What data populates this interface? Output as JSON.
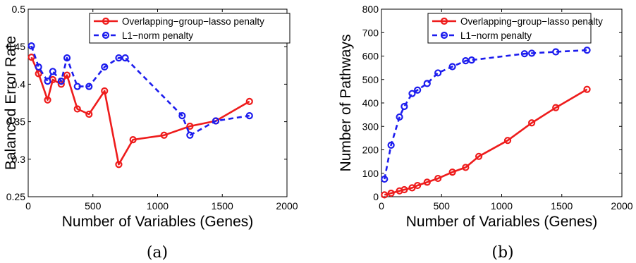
{
  "chart_data": [
    {
      "type": "line",
      "caption": "(a)",
      "xlabel": "Number of Variables (Genes)",
      "ylabel": "Balanced Error Rate",
      "xlim": [
        0,
        2000
      ],
      "ylim": [
        0.25,
        0.5
      ],
      "xticks": [
        0,
        500,
        1000,
        1500,
        2000
      ],
      "yticks": [
        0.25,
        0.3,
        0.35,
        0.4,
        0.45,
        0.5
      ],
      "xtick_labels": [
        "0",
        "500",
        "1000",
        "1500",
        "2000"
      ],
      "ytick_labels": [
        "0.25",
        "0.3",
        "0.35",
        "0.4",
        "0.45",
        "0.5"
      ],
      "grid": false,
      "legend": "top-right",
      "series": [
        {
          "name": "Overlapping−group−lasso penalty",
          "color": "#ee1c1c",
          "style": "solid",
          "x": [
            25,
            80,
            150,
            190,
            255,
            300,
            380,
            470,
            590,
            700,
            810,
            1050,
            1250,
            1450,
            1710
          ],
          "y": [
            0.436,
            0.414,
            0.379,
            0.406,
            0.4,
            0.412,
            0.367,
            0.36,
            0.391,
            0.293,
            0.326,
            0.332,
            0.344,
            0.351,
            0.377
          ]
        },
        {
          "name": "L1−norm penalty",
          "color": "#1c1cee",
          "style": "dashed",
          "x": [
            25,
            80,
            150,
            190,
            255,
            300,
            380,
            470,
            590,
            700,
            750,
            1190,
            1250,
            1450,
            1710
          ],
          "y": [
            0.451,
            0.423,
            0.404,
            0.417,
            0.404,
            0.435,
            0.397,
            0.397,
            0.423,
            0.435,
            0.435,
            0.358,
            0.332,
            0.351,
            0.358
          ]
        }
      ]
    },
    {
      "type": "line",
      "caption": "(b)",
      "xlabel": "Number of Variables (Genes)",
      "ylabel": "Number of Pathways",
      "xlim": [
        0,
        2000
      ],
      "ylim": [
        0,
        800
      ],
      "xticks": [
        0,
        500,
        1000,
        1500,
        2000
      ],
      "yticks": [
        0,
        100,
        200,
        300,
        400,
        500,
        600,
        700,
        800
      ],
      "xtick_labels": [
        "0",
        "500",
        "1000",
        "1500",
        "2000"
      ],
      "ytick_labels": [
        "0",
        "100",
        "200",
        "300",
        "400",
        "500",
        "600",
        "700",
        "800"
      ],
      "grid": false,
      "legend": "top-right",
      "series": [
        {
          "name": "Overlapping−group−lasso penalty",
          "color": "#ee1c1c",
          "style": "solid",
          "x": [
            25,
            80,
            150,
            190,
            255,
            300,
            380,
            470,
            590,
            700,
            810,
            1050,
            1250,
            1450,
            1710
          ],
          "y": [
            8,
            15,
            25,
            30,
            38,
            48,
            62,
            78,
            105,
            125,
            172,
            240,
            315,
            380,
            458
          ]
        },
        {
          "name": "L1−norm penalty",
          "color": "#1c1cee",
          "style": "dashed",
          "x": [
            25,
            80,
            150,
            190,
            255,
            300,
            380,
            470,
            590,
            700,
            750,
            1190,
            1250,
            1450,
            1710
          ],
          "y": [
            75,
            220,
            340,
            385,
            440,
            455,
            483,
            528,
            555,
            580,
            583,
            610,
            612,
            618,
            625
          ]
        }
      ]
    }
  ]
}
